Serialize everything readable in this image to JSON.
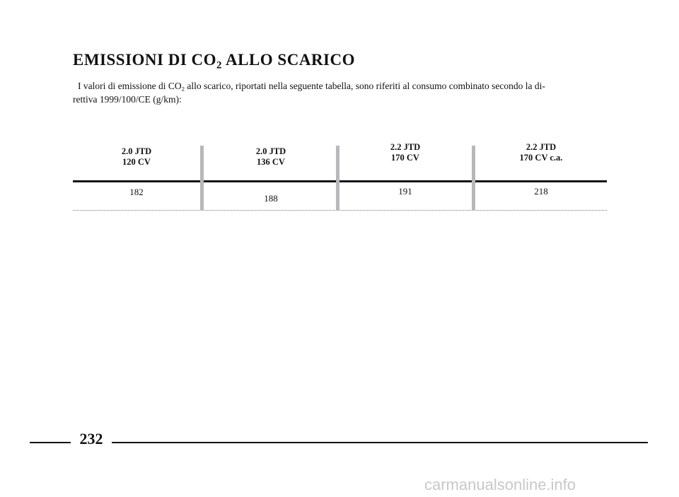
{
  "header": {
    "title": {
      "before": "EMISSIONI DI CO",
      "sub": "2",
      "after": " ALLO SCARICO"
    }
  },
  "body": {
    "line1": {
      "before": "I valori di emissione di CO",
      "sub": "2",
      "after": " allo scarico, riportati nella seguente tabella, sono riferiti al consumo combinato secondo la di-"
    },
    "line2": "rettiva 1999/100/CE (g/km):"
  },
  "table": {
    "columns": [
      [
        "2.0 JTD",
        "120 CV"
      ],
      [
        "2.0 JTD",
        "136 CV"
      ],
      [
        "2.2 JTD",
        "170 CV"
      ],
      [
        "2.2 JTD",
        "170 CV c.a."
      ]
    ],
    "values": [
      182,
      188,
      191,
      218
    ]
  },
  "footer": {
    "page": "232",
    "watermark": "carmanualsonline.info"
  }
}
